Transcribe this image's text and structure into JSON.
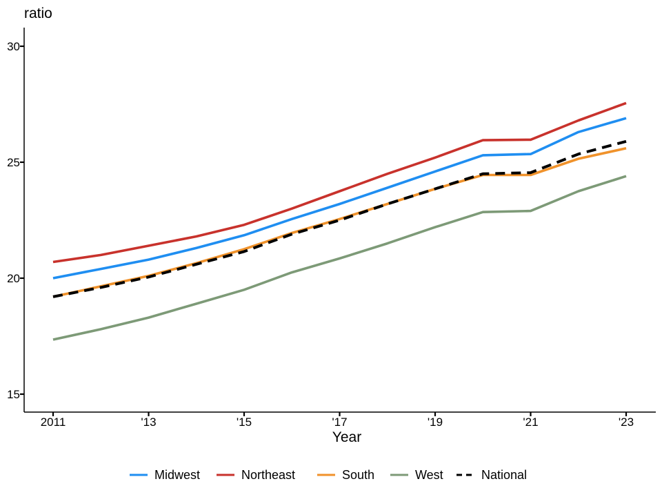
{
  "chart_data": {
    "type": "line",
    "title": "",
    "ylabel": "ratio",
    "xlabel": "Year",
    "x": [
      2011,
      2012,
      2013,
      2014,
      2015,
      2016,
      2017,
      2018,
      2019,
      2020,
      2021,
      2022,
      2023
    ],
    "xlim": [
      2011,
      2023
    ],
    "ylim": [
      15,
      30
    ],
    "x_ticks": [
      {
        "value": 2011,
        "label": "2011"
      },
      {
        "value": 2013,
        "label": "'13"
      },
      {
        "value": 2015,
        "label": "'15"
      },
      {
        "value": 2017,
        "label": "'17"
      },
      {
        "value": 2019,
        "label": "'19"
      },
      {
        "value": 2021,
        "label": "'21"
      },
      {
        "value": 2023,
        "label": "'23"
      }
    ],
    "y_ticks": [
      {
        "value": 15,
        "label": "15"
      },
      {
        "value": 20,
        "label": "20"
      },
      {
        "value": 25,
        "label": "25"
      },
      {
        "value": 30,
        "label": "30"
      }
    ],
    "grid": false,
    "legend_position": "bottom",
    "series": [
      {
        "name": "Midwest",
        "color": "#1f8ef1",
        "dashed": false,
        "values": [
          20.0,
          20.4,
          20.8,
          21.3,
          21.85,
          22.55,
          23.2,
          23.9,
          24.6,
          25.3,
          25.35,
          26.3,
          26.9
        ]
      },
      {
        "name": "Northeast",
        "color": "#c8322c",
        "dashed": false,
        "values": [
          20.7,
          21.0,
          21.4,
          21.8,
          22.3,
          23.0,
          23.75,
          24.5,
          25.2,
          25.95,
          25.97,
          26.8,
          27.55
        ]
      },
      {
        "name": "South",
        "color": "#f0922b",
        "dashed": false,
        "values": [
          19.2,
          19.65,
          20.1,
          20.65,
          21.25,
          21.95,
          22.55,
          23.2,
          23.85,
          24.45,
          24.45,
          25.15,
          25.6
        ]
      },
      {
        "name": "West",
        "color": "#7d9a77",
        "dashed": false,
        "values": [
          17.35,
          17.8,
          18.3,
          18.9,
          19.5,
          20.25,
          20.85,
          21.5,
          22.2,
          22.85,
          22.9,
          23.75,
          24.4
        ]
      },
      {
        "name": "National",
        "color": "#000000",
        "dashed": true,
        "values": [
          19.2,
          19.6,
          20.05,
          20.6,
          21.15,
          21.9,
          22.5,
          23.2,
          23.85,
          24.5,
          24.55,
          25.35,
          25.9
        ]
      }
    ]
  }
}
